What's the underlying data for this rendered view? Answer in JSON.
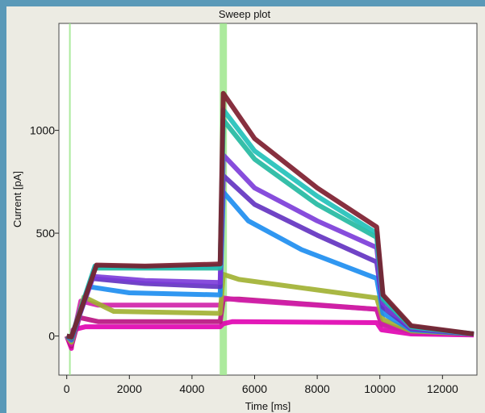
{
  "chart_data": {
    "type": "line",
    "title": "Sweep plot",
    "xlabel": "Time [ms]",
    "ylabel": "Current [pA]",
    "xlim": [
      -250,
      13100
    ],
    "ylim": [
      -190,
      1520
    ],
    "xticks": [
      0,
      2000,
      4000,
      6000,
      8000,
      10000,
      12000
    ],
    "xtick_labels": [
      "0",
      "2000",
      "4000",
      "6000",
      "8000",
      "10000",
      "12000"
    ],
    "yticks": [
      0,
      500,
      1000
    ],
    "ytick_labels": [
      "0",
      "500",
      "1000"
    ],
    "grid": false,
    "highlight_markers": [
      {
        "x": 100,
        "color": "#9ee68c"
      },
      {
        "x": 5000,
        "color": "#9ee68c"
      }
    ],
    "series": [
      {
        "color": "#e000b0",
        "values": [
          [
            0,
            0
          ],
          [
            150,
            -60
          ],
          [
            200,
            30
          ],
          [
            600,
            45
          ],
          [
            4900,
            45
          ],
          [
            5000,
            60
          ],
          [
            5300,
            70
          ],
          [
            9900,
            65
          ],
          [
            10050,
            30
          ],
          [
            11000,
            10
          ],
          [
            13000,
            5
          ]
        ]
      },
      {
        "color": "#b81080",
        "values": [
          [
            0,
            0
          ],
          [
            150,
            -50
          ],
          [
            400,
            90
          ],
          [
            1000,
            70
          ],
          [
            4900,
            70
          ],
          [
            5000,
            180
          ],
          [
            5500,
            180
          ],
          [
            9900,
            130
          ],
          [
            10050,
            60
          ],
          [
            11000,
            20
          ],
          [
            13000,
            10
          ]
        ]
      },
      {
        "color": "#d020a8",
        "values": [
          [
            0,
            0
          ],
          [
            150,
            -40
          ],
          [
            450,
            170
          ],
          [
            1000,
            150
          ],
          [
            4900,
            150
          ],
          [
            5000,
            185
          ],
          [
            5500,
            175
          ],
          [
            9900,
            130
          ],
          [
            10050,
            55
          ],
          [
            11000,
            20
          ],
          [
            13000,
            10
          ]
        ]
      },
      {
        "color": "#a0b030",
        "values": [
          [
            0,
            0
          ],
          [
            150,
            -30
          ],
          [
            550,
            190
          ],
          [
            1500,
            120
          ],
          [
            4900,
            110
          ],
          [
            5000,
            300
          ],
          [
            5500,
            275
          ],
          [
            9900,
            185
          ],
          [
            10100,
            80
          ],
          [
            11000,
            25
          ],
          [
            13000,
            10
          ]
        ]
      },
      {
        "color": "#1a8cf0",
        "values": [
          [
            0,
            0
          ],
          [
            150,
            -20
          ],
          [
            700,
            240
          ],
          [
            2000,
            210
          ],
          [
            4900,
            200
          ],
          [
            5000,
            700
          ],
          [
            5800,
            560
          ],
          [
            7500,
            420
          ],
          [
            9900,
            280
          ],
          [
            10100,
            110
          ],
          [
            11000,
            30
          ],
          [
            13000,
            10
          ]
        ]
      },
      {
        "color": "#6030c0",
        "values": [
          [
            0,
            0
          ],
          [
            150,
            -15
          ],
          [
            800,
            280
          ],
          [
            2500,
            255
          ],
          [
            4900,
            240
          ],
          [
            5000,
            780
          ],
          [
            6000,
            640
          ],
          [
            8000,
            490
          ],
          [
            9900,
            360
          ],
          [
            10100,
            140
          ],
          [
            11000,
            35
          ],
          [
            13000,
            10
          ]
        ]
      },
      {
        "color": "#7a3ad8",
        "values": [
          [
            0,
            0
          ],
          [
            150,
            -10
          ],
          [
            850,
            290
          ],
          [
            2500,
            270
          ],
          [
            4900,
            260
          ],
          [
            5000,
            880
          ],
          [
            6000,
            720
          ],
          [
            8000,
            560
          ],
          [
            9900,
            430
          ],
          [
            10100,
            160
          ],
          [
            11000,
            40
          ],
          [
            13000,
            10
          ]
        ]
      },
      {
        "color": "#20b8a0",
        "values": [
          [
            0,
            0
          ],
          [
            150,
            -10
          ],
          [
            900,
            330
          ],
          [
            2500,
            330
          ],
          [
            4900,
            330
          ],
          [
            5000,
            1050
          ],
          [
            6000,
            860
          ],
          [
            8000,
            640
          ],
          [
            9900,
            480
          ],
          [
            10100,
            180
          ],
          [
            11000,
            45
          ],
          [
            13000,
            10
          ]
        ]
      },
      {
        "color": "#1ec0b8",
        "values": [
          [
            0,
            0
          ],
          [
            150,
            -5
          ],
          [
            900,
            340
          ],
          [
            2500,
            335
          ],
          [
            4900,
            340
          ],
          [
            5000,
            1100
          ],
          [
            6000,
            900
          ],
          [
            8000,
            680
          ],
          [
            9900,
            500
          ],
          [
            10100,
            190
          ],
          [
            11000,
            45
          ],
          [
            13000,
            10
          ]
        ]
      },
      {
        "color": "#7a1a2a",
        "values": [
          [
            0,
            0
          ],
          [
            150,
            -5
          ],
          [
            950,
            345
          ],
          [
            2500,
            340
          ],
          [
            4900,
            350
          ],
          [
            5000,
            1180
          ],
          [
            6000,
            960
          ],
          [
            8000,
            720
          ],
          [
            9900,
            530
          ],
          [
            10100,
            200
          ],
          [
            11000,
            50
          ],
          [
            13000,
            10
          ]
        ]
      }
    ]
  }
}
